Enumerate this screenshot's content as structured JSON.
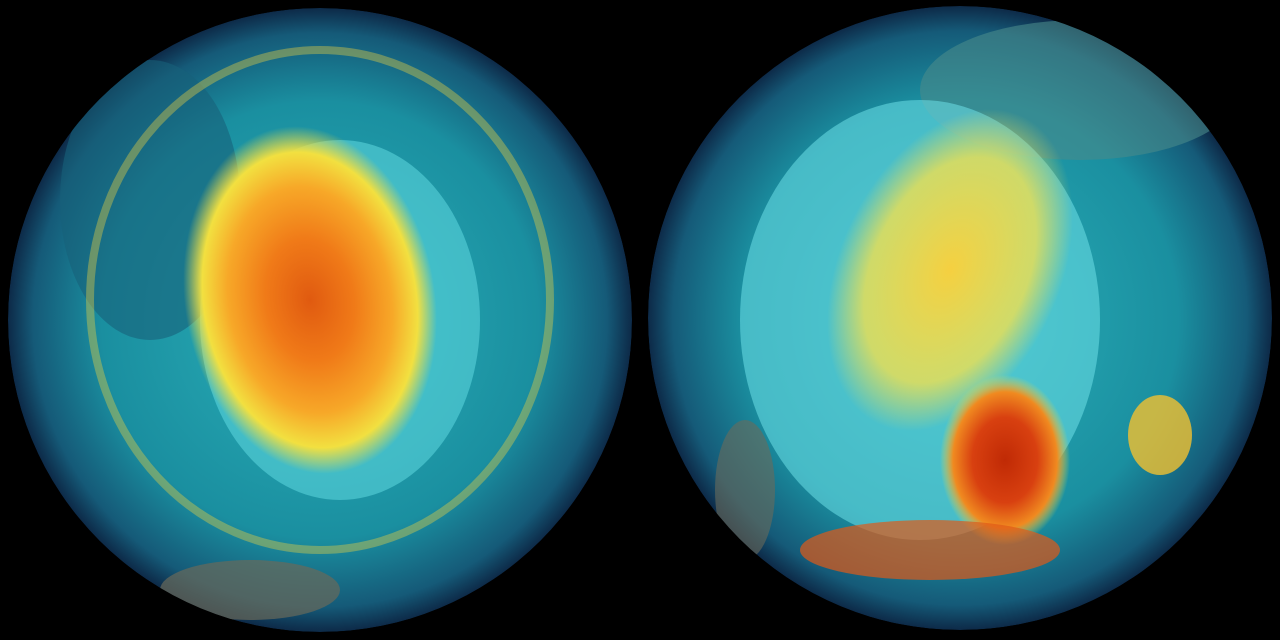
{
  "scene": {
    "background": "#000000",
    "globes": [
      {
        "id": "left",
        "colors": {
          "ocean": "#1a8fa0",
          "rim": "#0d2a48",
          "core": "#e8601a",
          "mid": "#f7a020",
          "band": "#f2e040",
          "ice": "#5fd8e0"
        }
      },
      {
        "id": "right",
        "colors": {
          "ocean": "#1a8fa0",
          "rim": "#0d2a48",
          "core": "#c83008",
          "mid": "#f08a20",
          "band": "#f2e040",
          "ice": "#6ee0e8"
        }
      }
    ]
  }
}
